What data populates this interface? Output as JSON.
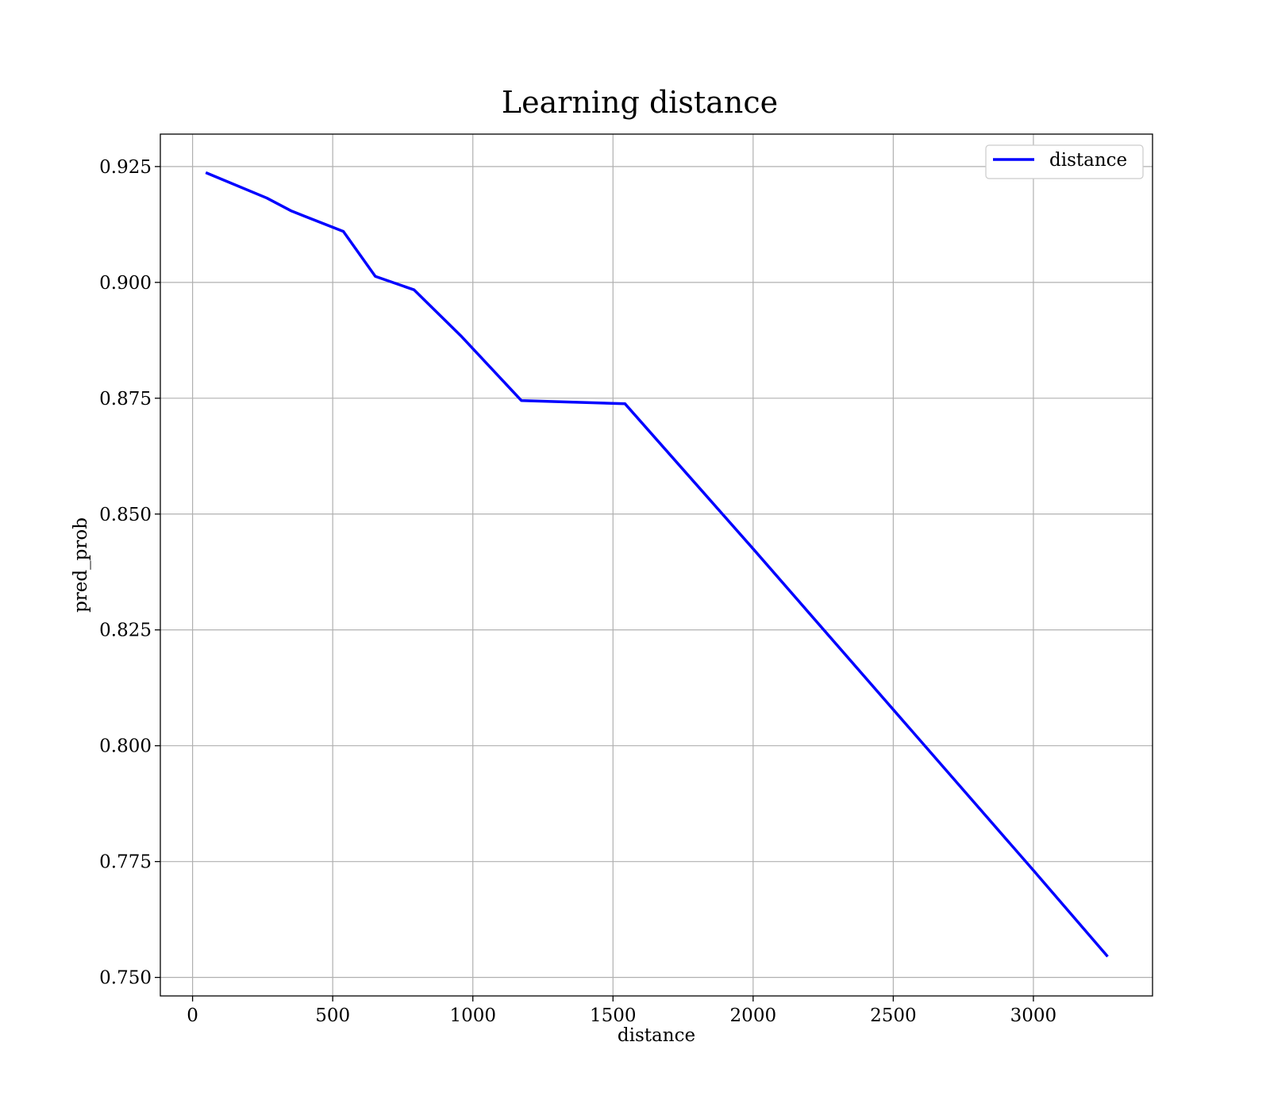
{
  "chart_data": {
    "type": "line",
    "title": "Learning distance",
    "xlabel": "distance",
    "ylabel": "pred_prob",
    "xlim": [
      -115,
      3425
    ],
    "ylim": [
      0.746,
      0.932
    ],
    "xticks": [
      0,
      500,
      1000,
      1500,
      2000,
      2500,
      3000
    ],
    "yticks": [
      0.75,
      0.775,
      0.8,
      0.825,
      0.85,
      0.875,
      0.9,
      0.925
    ],
    "xtick_labels": [
      "0",
      "500",
      "1000",
      "1500",
      "2000",
      "2500",
      "3000"
    ],
    "ytick_labels": [
      "0.750",
      "0.775",
      "0.800",
      "0.825",
      "0.850",
      "0.875",
      "0.900",
      "0.925"
    ],
    "grid": true,
    "legend_position": "top-right",
    "series": [
      {
        "name": "distance",
        "color": "#0000ff",
        "x": [
          47,
          265,
          353,
          538,
          652,
          790,
          960,
          1173,
          1543,
          2000,
          2500,
          3000,
          3265
        ],
        "y": [
          0.9237,
          0.9182,
          0.9154,
          0.911,
          0.9013,
          0.8984,
          0.8883,
          0.8745,
          0.8738,
          0.8425,
          0.8078,
          0.7731,
          0.7545
        ]
      }
    ]
  }
}
